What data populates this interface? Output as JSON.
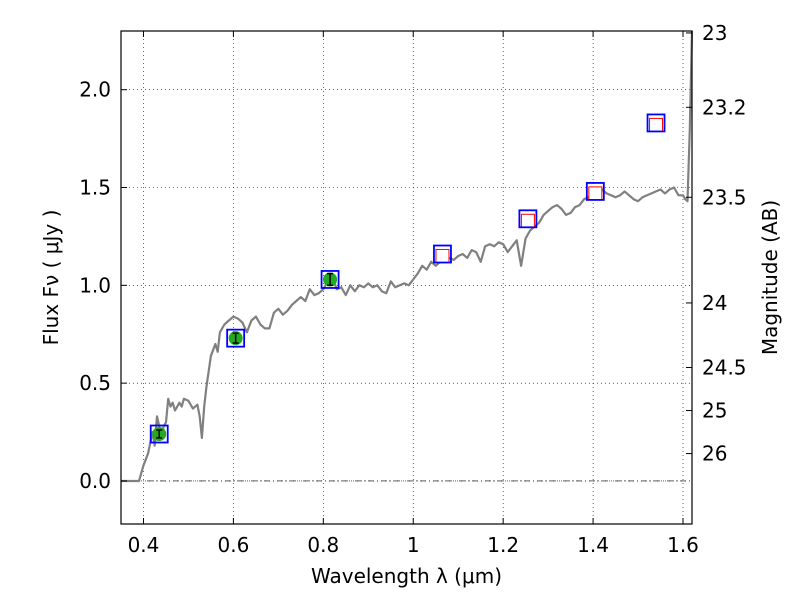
{
  "chart_data": {
    "type": "line",
    "title": "",
    "xlabel": "Wavelength  λ (μm)",
    "ylabel": "Flux  Fν  ( μJy )",
    "y2label": "Magnitude (AB)",
    "xlim": [
      0.35,
      1.62
    ],
    "ylim": [
      -0.22,
      2.3
    ],
    "grid": true,
    "x_ticks": [
      0.4,
      0.6,
      0.8,
      1.0,
      1.2,
      1.4,
      1.6
    ],
    "x_tick_labels": [
      "0.4",
      "0.6",
      "0.8",
      "1",
      "1.2",
      "1.4",
      "1.6"
    ],
    "y_ticks": [
      0.0,
      0.5,
      1.0,
      1.5,
      2.0
    ],
    "y_tick_labels": [
      "0.0",
      "0.5",
      "1.0",
      "1.5",
      "2.0"
    ],
    "y2_ticks": [
      {
        "label": "23",
        "flux": 2.29
      },
      {
        "label": "23.2",
        "flux": 1.91
      },
      {
        "label": "23.5",
        "flux": 1.45
      },
      {
        "label": "24",
        "flux": 0.91
      },
      {
        "label": "24.5",
        "flux": 0.58
      },
      {
        "label": "25",
        "flux": 0.36
      },
      {
        "label": "26",
        "flux": 0.14
      }
    ],
    "zero_line": 0.0,
    "model_spectrum": {
      "color": "#808080",
      "x": [
        0.35,
        0.38,
        0.39,
        0.4,
        0.41,
        0.42,
        0.425,
        0.43,
        0.435,
        0.44,
        0.445,
        0.45,
        0.455,
        0.46,
        0.465,
        0.47,
        0.48,
        0.485,
        0.49,
        0.5,
        0.51,
        0.52,
        0.525,
        0.53,
        0.535,
        0.54,
        0.55,
        0.56,
        0.565,
        0.57,
        0.58,
        0.59,
        0.6,
        0.61,
        0.62,
        0.63,
        0.64,
        0.65,
        0.66,
        0.67,
        0.68,
        0.69,
        0.7,
        0.71,
        0.72,
        0.73,
        0.74,
        0.75,
        0.76,
        0.77,
        0.78,
        0.79,
        0.8,
        0.81,
        0.82,
        0.83,
        0.84,
        0.85,
        0.86,
        0.87,
        0.88,
        0.89,
        0.9,
        0.91,
        0.92,
        0.93,
        0.94,
        0.95,
        0.96,
        0.97,
        0.98,
        0.99,
        1.0,
        1.01,
        1.02,
        1.03,
        1.04,
        1.05,
        1.06,
        1.07,
        1.08,
        1.09,
        1.1,
        1.11,
        1.12,
        1.13,
        1.14,
        1.15,
        1.16,
        1.17,
        1.18,
        1.19,
        1.2,
        1.21,
        1.22,
        1.23,
        1.24,
        1.25,
        1.26,
        1.27,
        1.28,
        1.29,
        1.3,
        1.31,
        1.32,
        1.33,
        1.34,
        1.35,
        1.36,
        1.37,
        1.38,
        1.39,
        1.4,
        1.41,
        1.42,
        1.43,
        1.44,
        1.45,
        1.46,
        1.47,
        1.48,
        1.49,
        1.5,
        1.51,
        1.52,
        1.53,
        1.54,
        1.55,
        1.56,
        1.57,
        1.58,
        1.59,
        1.6,
        1.605,
        1.61,
        1.615,
        1.62
      ],
      "y": [
        0.0,
        0.0,
        0.0,
        0.08,
        0.14,
        0.25,
        0.18,
        0.33,
        0.28,
        0.22,
        0.28,
        0.3,
        0.42,
        0.38,
        0.4,
        0.36,
        0.4,
        0.38,
        0.42,
        0.41,
        0.37,
        0.39,
        0.33,
        0.22,
        0.38,
        0.48,
        0.64,
        0.7,
        0.66,
        0.76,
        0.8,
        0.82,
        0.84,
        0.83,
        0.81,
        0.76,
        0.82,
        0.84,
        0.8,
        0.78,
        0.78,
        0.86,
        0.88,
        0.85,
        0.87,
        0.9,
        0.92,
        0.94,
        0.92,
        0.98,
        0.95,
        0.96,
        0.98,
        1.02,
        1.04,
        0.98,
        0.99,
        0.95,
        1.0,
        0.97,
        1.0,
        0.99,
        1.01,
        0.99,
        1.0,
        0.97,
        0.96,
        1.02,
        0.99,
        1.0,
        1.01,
        1.0,
        1.03,
        1.06,
        1.1,
        1.08,
        1.12,
        1.1,
        1.12,
        1.15,
        1.14,
        1.13,
        1.15,
        1.16,
        1.14,
        1.18,
        1.17,
        1.12,
        1.2,
        1.21,
        1.2,
        1.22,
        1.21,
        1.17,
        1.2,
        1.23,
        1.1,
        1.24,
        1.28,
        1.3,
        1.32,
        1.36,
        1.38,
        1.4,
        1.41,
        1.39,
        1.36,
        1.37,
        1.4,
        1.41,
        1.44,
        1.45,
        1.46,
        1.48,
        1.49,
        1.47,
        1.46,
        1.45,
        1.46,
        1.48,
        1.46,
        1.44,
        1.43,
        1.45,
        1.46,
        1.47,
        1.48,
        1.49,
        1.47,
        1.49,
        1.5,
        1.46,
        1.46,
        1.44,
        1.43,
        1.8,
        2.3
      ]
    },
    "observed_points": {
      "color": "#22aa22",
      "x": [
        0.435,
        0.605,
        0.815
      ],
      "y": [
        0.24,
        0.73,
        1.03
      ],
      "yerr": [
        0.02,
        0.025,
        0.03
      ]
    },
    "model_photometry": {
      "color": "#0000ff",
      "x": [
        0.435,
        0.605,
        0.815,
        1.065,
        1.255,
        1.405,
        1.54
      ],
      "y": [
        0.24,
        0.73,
        1.03,
        1.16,
        1.34,
        1.48,
        1.83
      ]
    },
    "predicted_points": {
      "color": "#ff0000",
      "x": [
        1.065,
        1.255,
        1.405,
        1.54
      ],
      "y": [
        1.15,
        1.33,
        1.47,
        1.82
      ]
    }
  }
}
